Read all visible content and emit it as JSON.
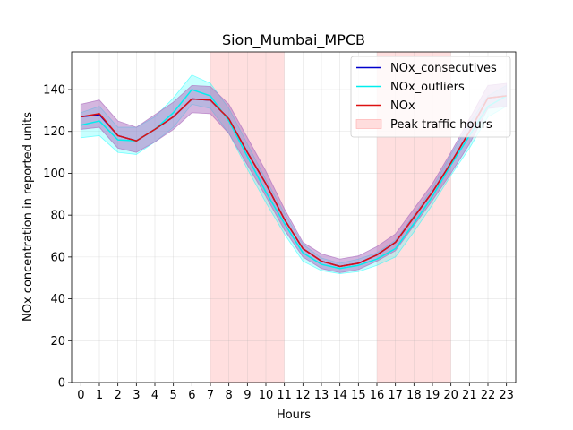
{
  "chart_data": {
    "type": "line",
    "title": "Sion_Mumbai_MPCB",
    "xlabel": "Hours",
    "ylabel": "NOx concentration in reported units",
    "x": [
      0,
      1,
      2,
      3,
      4,
      5,
      6,
      7,
      8,
      9,
      10,
      11,
      12,
      13,
      14,
      15,
      16,
      17,
      18,
      19,
      20,
      21,
      22,
      23
    ],
    "xlim": [
      -0.5,
      23.5
    ],
    "ylim": [
      0,
      158
    ],
    "yticks": [
      0,
      20,
      40,
      60,
      80,
      100,
      120,
      140
    ],
    "grid": true,
    "legend_position": "top-right",
    "peak_traffic_hours": [
      [
        7,
        11
      ],
      [
        16,
        20
      ]
    ],
    "series": [
      {
        "name": "NOx_consecutives",
        "color": "#0000cc",
        "values": [
          127,
          128,
          118,
          115.5,
          121,
          127,
          135.5,
          135,
          126,
          110,
          95,
          78,
          64,
          58,
          55.5,
          57,
          61,
          67,
          79,
          91,
          105,
          120,
          136,
          137
        ],
        "lower": [
          121,
          122,
          112,
          110,
          115,
          121,
          129,
          128.5,
          119,
          104,
          89,
          73,
          60,
          54.5,
          52.5,
          54,
          58,
          63,
          75,
          87,
          100,
          114,
          131,
          132
        ],
        "upper": [
          133,
          135,
          125,
          122,
          128,
          134,
          142,
          141.5,
          133,
          117,
          101,
          83,
          67,
          61.5,
          59,
          60.5,
          65,
          71,
          83,
          95,
          110,
          126,
          142,
          143
        ],
        "band_color": "#7b4fb0"
      },
      {
        "name": "NOx_outliers",
        "color": "#00eeee",
        "values": [
          123,
          125,
          116,
          115.5,
          121,
          129,
          140,
          137,
          125,
          108,
          91,
          76,
          62,
          56.5,
          54.5,
          56,
          59,
          64,
          76,
          89,
          104,
          118,
          132,
          137
        ],
        "lower": [
          117,
          118,
          110,
          109,
          115,
          122,
          133,
          131,
          119,
          102,
          86,
          71,
          58,
          53.5,
          52,
          53,
          56,
          60,
          72,
          85,
          99,
          112,
          127,
          132
        ],
        "upper": [
          129,
          132,
          122,
          122,
          127,
          136,
          147,
          143,
          131,
          114,
          97,
          81,
          66,
          59.5,
          57,
          59,
          62,
          68,
          80,
          93,
          109,
          124,
          137,
          142
        ],
        "band_color": "#00ffff"
      },
      {
        "name": "NOx",
        "color": "#dd1111",
        "values": [
          127,
          128.5,
          118,
          115.5,
          121,
          127,
          135.5,
          135,
          126,
          110,
          95,
          78,
          64,
          58,
          55.5,
          57,
          61,
          67,
          79,
          91,
          105,
          120,
          136,
          137
        ],
        "lower": [
          121,
          122,
          112,
          110,
          115,
          121,
          129,
          128.5,
          119,
          104,
          89,
          73,
          60,
          54.5,
          52.5,
          54,
          58,
          63,
          75,
          87,
          100,
          114,
          131,
          132
        ],
        "upper": [
          133,
          135,
          125,
          122,
          128,
          134,
          142,
          141.5,
          133,
          117,
          101,
          83,
          67,
          61.5,
          59,
          60.5,
          65,
          71,
          83,
          95,
          110,
          126,
          142,
          143
        ],
        "band_color": "#cc88cc"
      }
    ],
    "legend": [
      {
        "label": "NOx_consecutives",
        "kind": "line",
        "color": "#0000cc"
      },
      {
        "label": "NOx_outliers",
        "kind": "line",
        "color": "#00eeee"
      },
      {
        "label": "NOx",
        "kind": "line",
        "color": "#dd1111"
      },
      {
        "label": "Peak traffic hours",
        "kind": "patch",
        "color": "#ffdddd"
      }
    ]
  }
}
